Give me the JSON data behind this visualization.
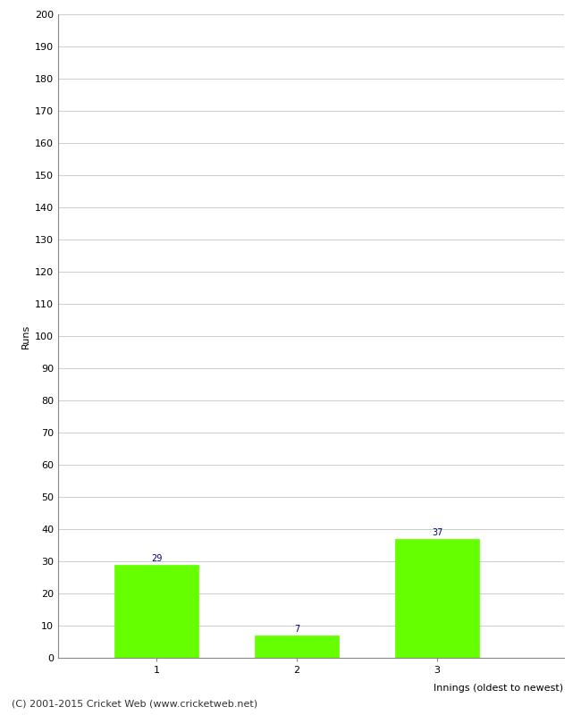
{
  "categories": [
    "1",
    "2",
    "3"
  ],
  "values": [
    29,
    7,
    37
  ],
  "bar_color": "#66ff00",
  "bar_edge_color": "#66ff00",
  "ylabel": "Runs",
  "xlabel_text": "Innings (oldest to newest)",
  "ylim": [
    0,
    200
  ],
  "yticks": [
    0,
    10,
    20,
    30,
    40,
    50,
    60,
    70,
    80,
    90,
    100,
    110,
    120,
    130,
    140,
    150,
    160,
    170,
    180,
    190,
    200
  ],
  "value_label_color": "#000080",
  "value_label_fontsize": 7,
  "footer_text": "(C) 2001-2015 Cricket Web (www.cricketweb.net)",
  "footer_fontsize": 8,
  "axis_label_fontsize": 8,
  "tick_fontsize": 8,
  "background_color": "#ffffff",
  "grid_color": "#cccccc",
  "bar_width": 0.6
}
